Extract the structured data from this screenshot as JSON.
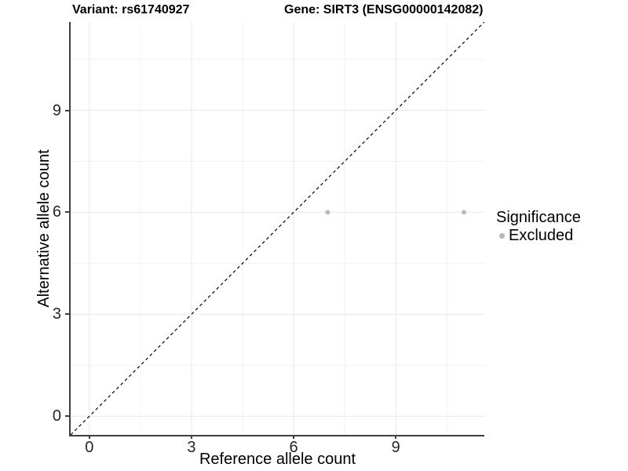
{
  "chart_data": {
    "type": "scatter",
    "title_left": "Variant: rs61740927",
    "title_right": "Gene: SIRT3 (ENSG00000142082)",
    "xlabel": "Reference allele count",
    "ylabel": "Alternative allele count",
    "xlim": [
      -0.55,
      11.6
    ],
    "ylim": [
      -0.55,
      11.6
    ],
    "x_ticks": [
      0,
      3,
      6,
      9
    ],
    "y_ticks": [
      0,
      3,
      6,
      9
    ],
    "x_minor_ticks": [
      1.5,
      4.5,
      7.5,
      10.5
    ],
    "y_minor_ticks": [
      1.5,
      4.5,
      7.5,
      10.5
    ],
    "grid": "major+minor",
    "series": [
      {
        "name": "Excluded",
        "color": "#b9b9b9",
        "points": [
          {
            "x": 7,
            "y": 6
          },
          {
            "x": 11,
            "y": 6
          }
        ]
      }
    ],
    "reference_line": {
      "kind": "identity y=x",
      "style": "dashed",
      "color": "#000000"
    },
    "legend": {
      "title": "Significance",
      "position": "right",
      "entries": [
        {
          "label": "Excluded",
          "color": "#b9b9b9"
        }
      ]
    },
    "colors": {
      "background": "#ffffff",
      "grid_major": "#e7e7e7",
      "grid_minor": "#f2f2f2",
      "axis_line": "#404040",
      "tick_text": "#262626",
      "point": "#b9b9b9"
    }
  }
}
